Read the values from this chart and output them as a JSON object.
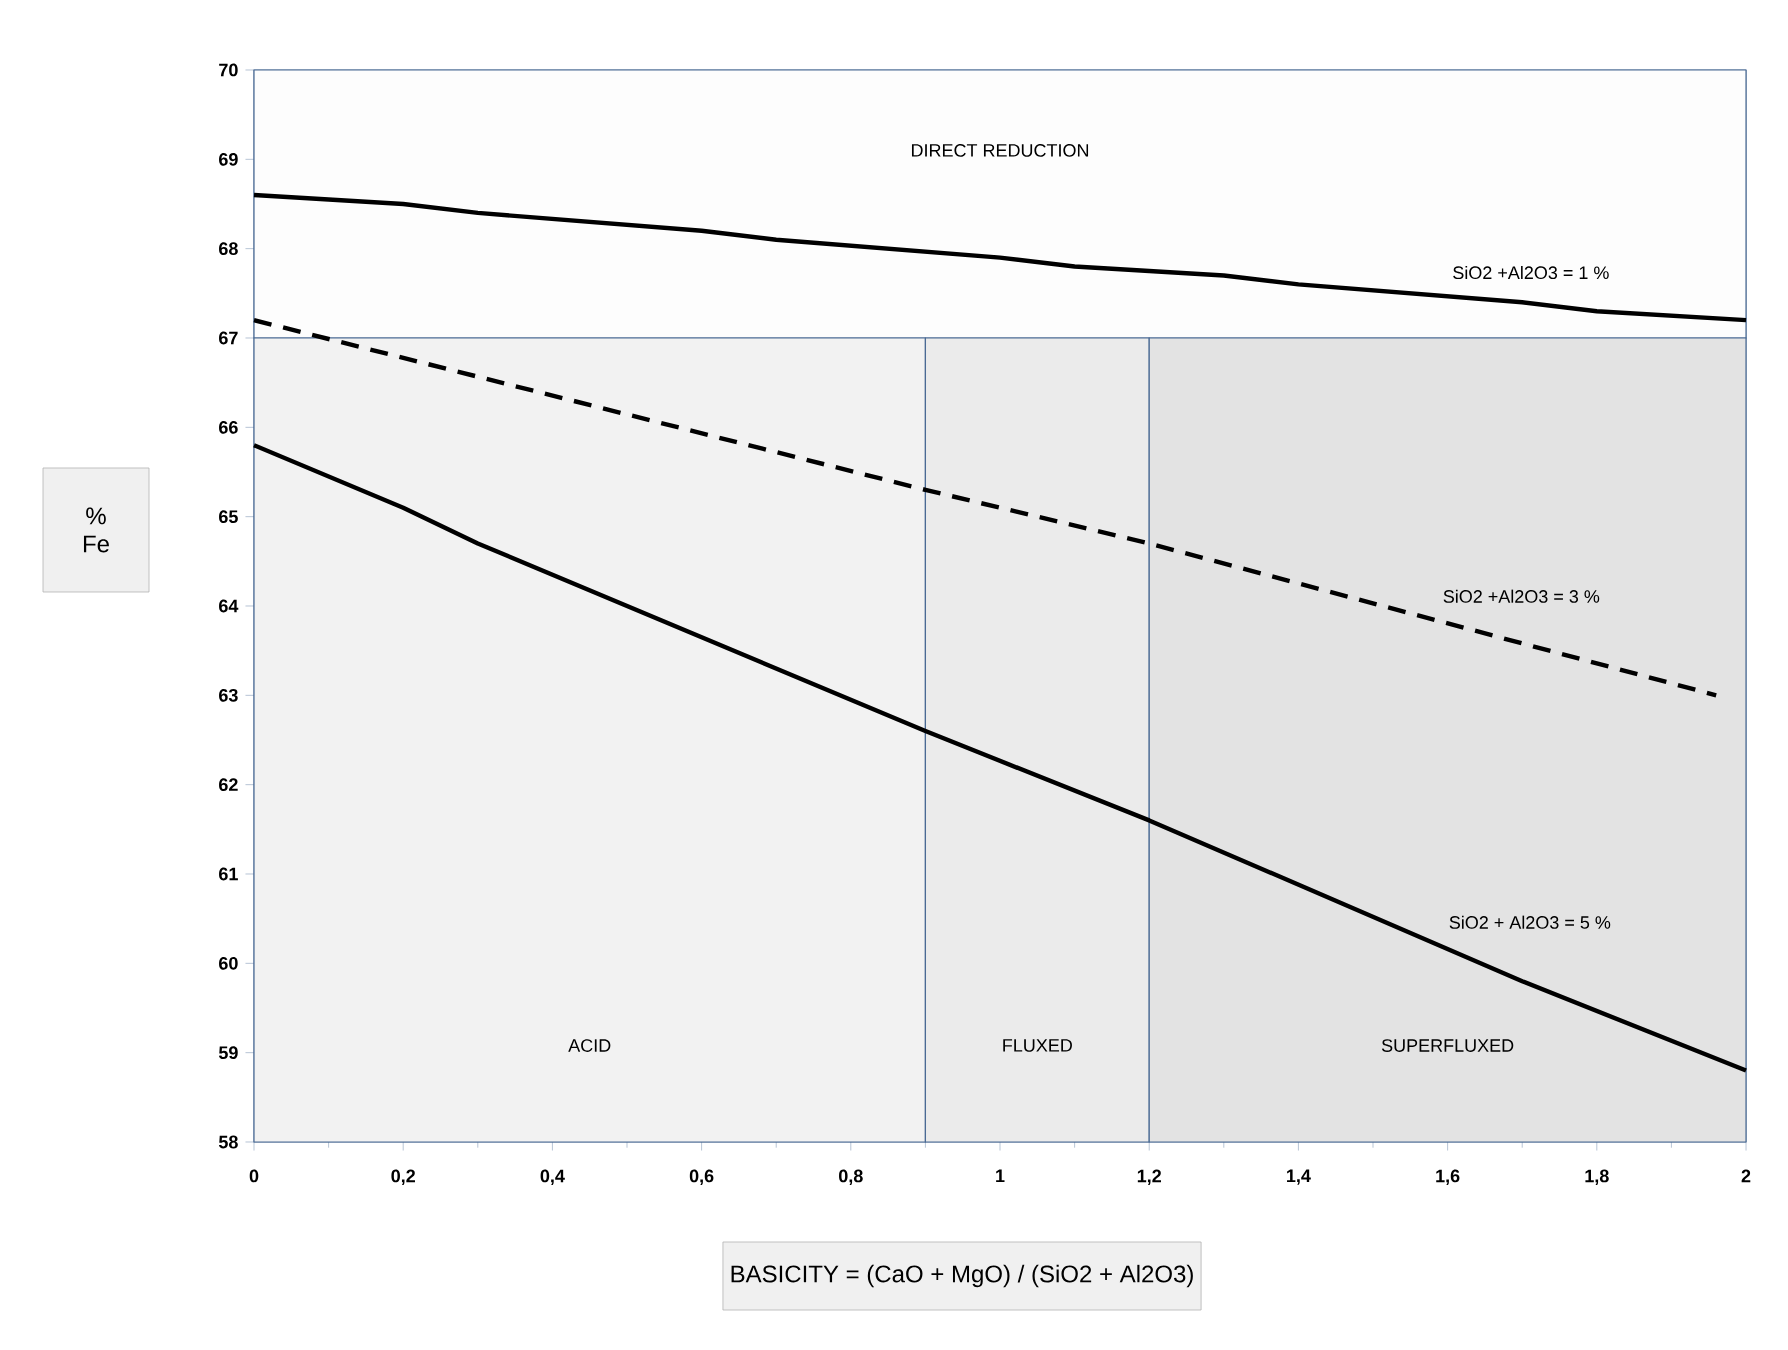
{
  "chart_data": {
    "type": "line",
    "xlabel": "BASICITY  = (CaO + MgO) / (SiO2 + Al2O3)",
    "ylabel": "% Fe",
    "xlim": [
      0,
      2
    ],
    "ylim": [
      58,
      70
    ],
    "xticks": [
      {
        "value": 0,
        "label": "0"
      },
      {
        "value": 0.2,
        "label": "0,2"
      },
      {
        "value": 0.4,
        "label": "0,4"
      },
      {
        "value": 0.6,
        "label": "0,6"
      },
      {
        "value": 0.8,
        "label": "0,8"
      },
      {
        "value": 1,
        "label": "1"
      },
      {
        "value": 1.2,
        "label": "1,2"
      },
      {
        "value": 1.4,
        "label": "1,4"
      },
      {
        "value": 1.6,
        "label": "1,6"
      },
      {
        "value": 1.8,
        "label": "1,8"
      },
      {
        "value": 2,
        "label": "2"
      }
    ],
    "yticks": [
      58,
      59,
      60,
      61,
      62,
      63,
      64,
      65,
      66,
      67,
      68,
      69,
      70
    ],
    "bands": [
      {
        "axis": "y",
        "from": 67,
        "to": 70,
        "label": "DIRECT REDUCTION",
        "color": "#fdfdfd"
      },
      {
        "axis": "x",
        "from": 0,
        "to": 0.9,
        "label": "ACID",
        "color": "#f2f2f2"
      },
      {
        "axis": "x",
        "from": 0.9,
        "to": 1.2,
        "label": "FLUXED",
        "color": "#ebebeb"
      },
      {
        "axis": "x",
        "from": 1.2,
        "to": 2,
        "label": "SUPERFLUXED",
        "color": "#e3e3e3"
      }
    ],
    "series": [
      {
        "name": "SiO2 +Al2O3 = 1 %",
        "color": "#000000",
        "line_style": "solid",
        "x": [
          0,
          0.2,
          0.3,
          0.6,
          0.7,
          1.0,
          1.1,
          1.3,
          1.4,
          1.7,
          1.8,
          2
        ],
        "values": [
          68.6,
          68.5,
          68.4,
          68.2,
          68.1,
          67.9,
          67.8,
          67.7,
          67.6,
          67.4,
          67.3,
          67.2
        ]
      },
      {
        "name": "SiO2 +Al2O3 = 3 %",
        "color": "#000000",
        "line_style": "dashed",
        "x": [
          0,
          0.9,
          1.2,
          1.96
        ],
        "values": [
          67.2,
          65.3,
          64.7,
          63.0
        ]
      },
      {
        "name": "SiO2 + Al2O3 = 5 %",
        "color": "#000000",
        "line_style": "solid",
        "x": [
          0,
          0.2,
          0.3,
          0.9,
          1.2,
          1.7,
          2
        ],
        "values": [
          65.8,
          65.1,
          64.7,
          62.6,
          61.6,
          59.8,
          58.8
        ]
      }
    ]
  }
}
